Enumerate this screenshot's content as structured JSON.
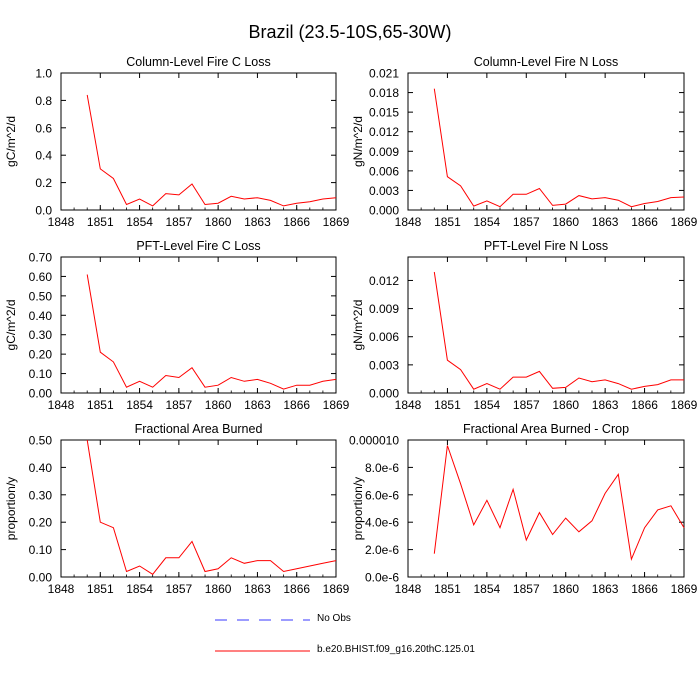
{
  "page": {
    "title": "Brazil (23.5-10S,65-30W)"
  },
  "legend": {
    "items": [
      {
        "label": "No Obs",
        "color": "#3a3aff",
        "style": "dashed"
      },
      {
        "label": "b.e20.BHIST.f09_g16.20thC.125.01",
        "color": "#ff0000",
        "style": "solid"
      }
    ]
  },
  "series_color": "#ff0000",
  "chart_data": [
    {
      "type": "line",
      "title": "Column-Level Fire C Loss",
      "ylabel": "gC/m^2/d",
      "xlim": [
        1848,
        1869
      ],
      "xticks": [
        "1848",
        "1851",
        "1854",
        "1857",
        "1860",
        "1863",
        "1866",
        "1869"
      ],
      "ylim": [
        0,
        1.0
      ],
      "yticks": [
        "0.0",
        "0.2",
        "0.4",
        "0.6",
        "0.8",
        "1.0"
      ],
      "x": [
        1850,
        1851,
        1852,
        1853,
        1854,
        1855,
        1856,
        1857,
        1858,
        1859,
        1860,
        1861,
        1862,
        1863,
        1864,
        1865,
        1866,
        1867,
        1868,
        1869
      ],
      "series": [
        {
          "values": [
            0.84,
            0.3,
            0.23,
            0.04,
            0.08,
            0.03,
            0.12,
            0.11,
            0.19,
            0.04,
            0.05,
            0.1,
            0.08,
            0.09,
            0.07,
            0.03,
            0.05,
            0.06,
            0.08,
            0.09
          ]
        }
      ]
    },
    {
      "type": "line",
      "title": "Column-Level Fire N Loss",
      "ylabel": "gN/m^2/d",
      "xlim": [
        1848,
        1869
      ],
      "xticks": [
        "1848",
        "1851",
        "1854",
        "1857",
        "1860",
        "1863",
        "1866",
        "1869"
      ],
      "ylim": [
        0,
        0.021
      ],
      "yticks": [
        "0.000",
        "0.003",
        "0.006",
        "0.009",
        "0.012",
        "0.015",
        "0.018",
        "0.021"
      ],
      "x": [
        1850,
        1851,
        1852,
        1853,
        1854,
        1855,
        1856,
        1857,
        1858,
        1859,
        1860,
        1861,
        1862,
        1863,
        1864,
        1865,
        1866,
        1867,
        1868,
        1869
      ],
      "series": [
        {
          "values": [
            0.0186,
            0.0051,
            0.0037,
            0.0006,
            0.0014,
            0.0005,
            0.0024,
            0.0024,
            0.0033,
            0.0007,
            0.0009,
            0.0022,
            0.0017,
            0.0019,
            0.0015,
            0.0005,
            0.001,
            0.0013,
            0.0019,
            0.002
          ]
        }
      ]
    },
    {
      "type": "line",
      "title": "PFT-Level Fire C Loss",
      "ylabel": "gC/m^2/d",
      "xlim": [
        1848,
        1869
      ],
      "xticks": [
        "1848",
        "1851",
        "1854",
        "1857",
        "1860",
        "1863",
        "1866",
        "1869"
      ],
      "ylim": [
        0,
        0.7
      ],
      "yticks": [
        "0.00",
        "0.10",
        "0.20",
        "0.30",
        "0.40",
        "0.50",
        "0.60",
        "0.70"
      ],
      "x": [
        1850,
        1851,
        1852,
        1853,
        1854,
        1855,
        1856,
        1857,
        1858,
        1859,
        1860,
        1861,
        1862,
        1863,
        1864,
        1865,
        1866,
        1867,
        1868,
        1869
      ],
      "series": [
        {
          "values": [
            0.61,
            0.21,
            0.16,
            0.03,
            0.06,
            0.03,
            0.09,
            0.08,
            0.13,
            0.03,
            0.04,
            0.08,
            0.06,
            0.07,
            0.05,
            0.02,
            0.04,
            0.04,
            0.06,
            0.07
          ]
        }
      ]
    },
    {
      "type": "line",
      "title": "PFT-Level Fire N Loss",
      "ylabel": "gN/m^2/d",
      "xlim": [
        1848,
        1869
      ],
      "xticks": [
        "1848",
        "1851",
        "1854",
        "1857",
        "1860",
        "1863",
        "1866",
        "1869"
      ],
      "ylim": [
        0,
        0.0145
      ],
      "yticks": [
        "0.000",
        "0.003",
        "0.006",
        "0.009",
        "0.012"
      ],
      "x": [
        1850,
        1851,
        1852,
        1853,
        1854,
        1855,
        1856,
        1857,
        1858,
        1859,
        1860,
        1861,
        1862,
        1863,
        1864,
        1865,
        1866,
        1867,
        1868,
        1869
      ],
      "series": [
        {
          "values": [
            0.0129,
            0.0035,
            0.0025,
            0.0004,
            0.001,
            0.0004,
            0.0017,
            0.0017,
            0.0023,
            0.0005,
            0.0006,
            0.0016,
            0.0012,
            0.0014,
            0.001,
            0.0004,
            0.0007,
            0.0009,
            0.0014,
            0.0014
          ]
        }
      ]
    },
    {
      "type": "line",
      "title": "Fractional Area Burned",
      "ylabel": "proportion/y",
      "xlim": [
        1848,
        1869
      ],
      "xticks": [
        "1848",
        "1851",
        "1854",
        "1857",
        "1860",
        "1863",
        "1866",
        "1869"
      ],
      "ylim": [
        0,
        0.5
      ],
      "yticks": [
        "0.00",
        "0.10",
        "0.20",
        "0.30",
        "0.40",
        "0.50"
      ],
      "x": [
        1850,
        1851,
        1852,
        1853,
        1854,
        1855,
        1856,
        1857,
        1858,
        1859,
        1860,
        1861,
        1862,
        1863,
        1864,
        1865,
        1866,
        1867,
        1868,
        1869
      ],
      "series": [
        {
          "values": [
            0.5,
            0.2,
            0.18,
            0.02,
            0.04,
            0.01,
            0.07,
            0.07,
            0.13,
            0.02,
            0.03,
            0.07,
            0.05,
            0.06,
            0.06,
            0.02,
            0.03,
            0.04,
            0.05,
            0.06
          ]
        }
      ]
    },
    {
      "type": "line",
      "title": "Fractional Area Burned - Crop",
      "ylabel": "proportion/y",
      "xlim": [
        1848,
        1869
      ],
      "xticks": [
        "1848",
        "1851",
        "1854",
        "1857",
        "1860",
        "1863",
        "1866",
        "1869"
      ],
      "ylim": [
        0,
        1e-05
      ],
      "yticks": [
        "0.0e-6",
        "2.0e-6",
        "4.0e-6",
        "6.0e-6",
        "8.0e-6",
        "0.000010"
      ],
      "x": [
        1850,
        1851,
        1852,
        1853,
        1854,
        1855,
        1856,
        1857,
        1858,
        1859,
        1860,
        1861,
        1862,
        1863,
        1864,
        1865,
        1866,
        1867,
        1868,
        1869
      ],
      "series": [
        {
          "values": [
            1.7e-06,
            9.6e-06,
            6.8e-06,
            3.8e-06,
            5.6e-06,
            3.6e-06,
            6.4e-06,
            2.7e-06,
            4.7e-06,
            3.1e-06,
            4.3e-06,
            3.3e-06,
            4.1e-06,
            6.1e-06,
            7.5e-06,
            1.3e-06,
            3.6e-06,
            4.9e-06,
            5.2e-06,
            3.6e-06
          ]
        }
      ]
    }
  ]
}
